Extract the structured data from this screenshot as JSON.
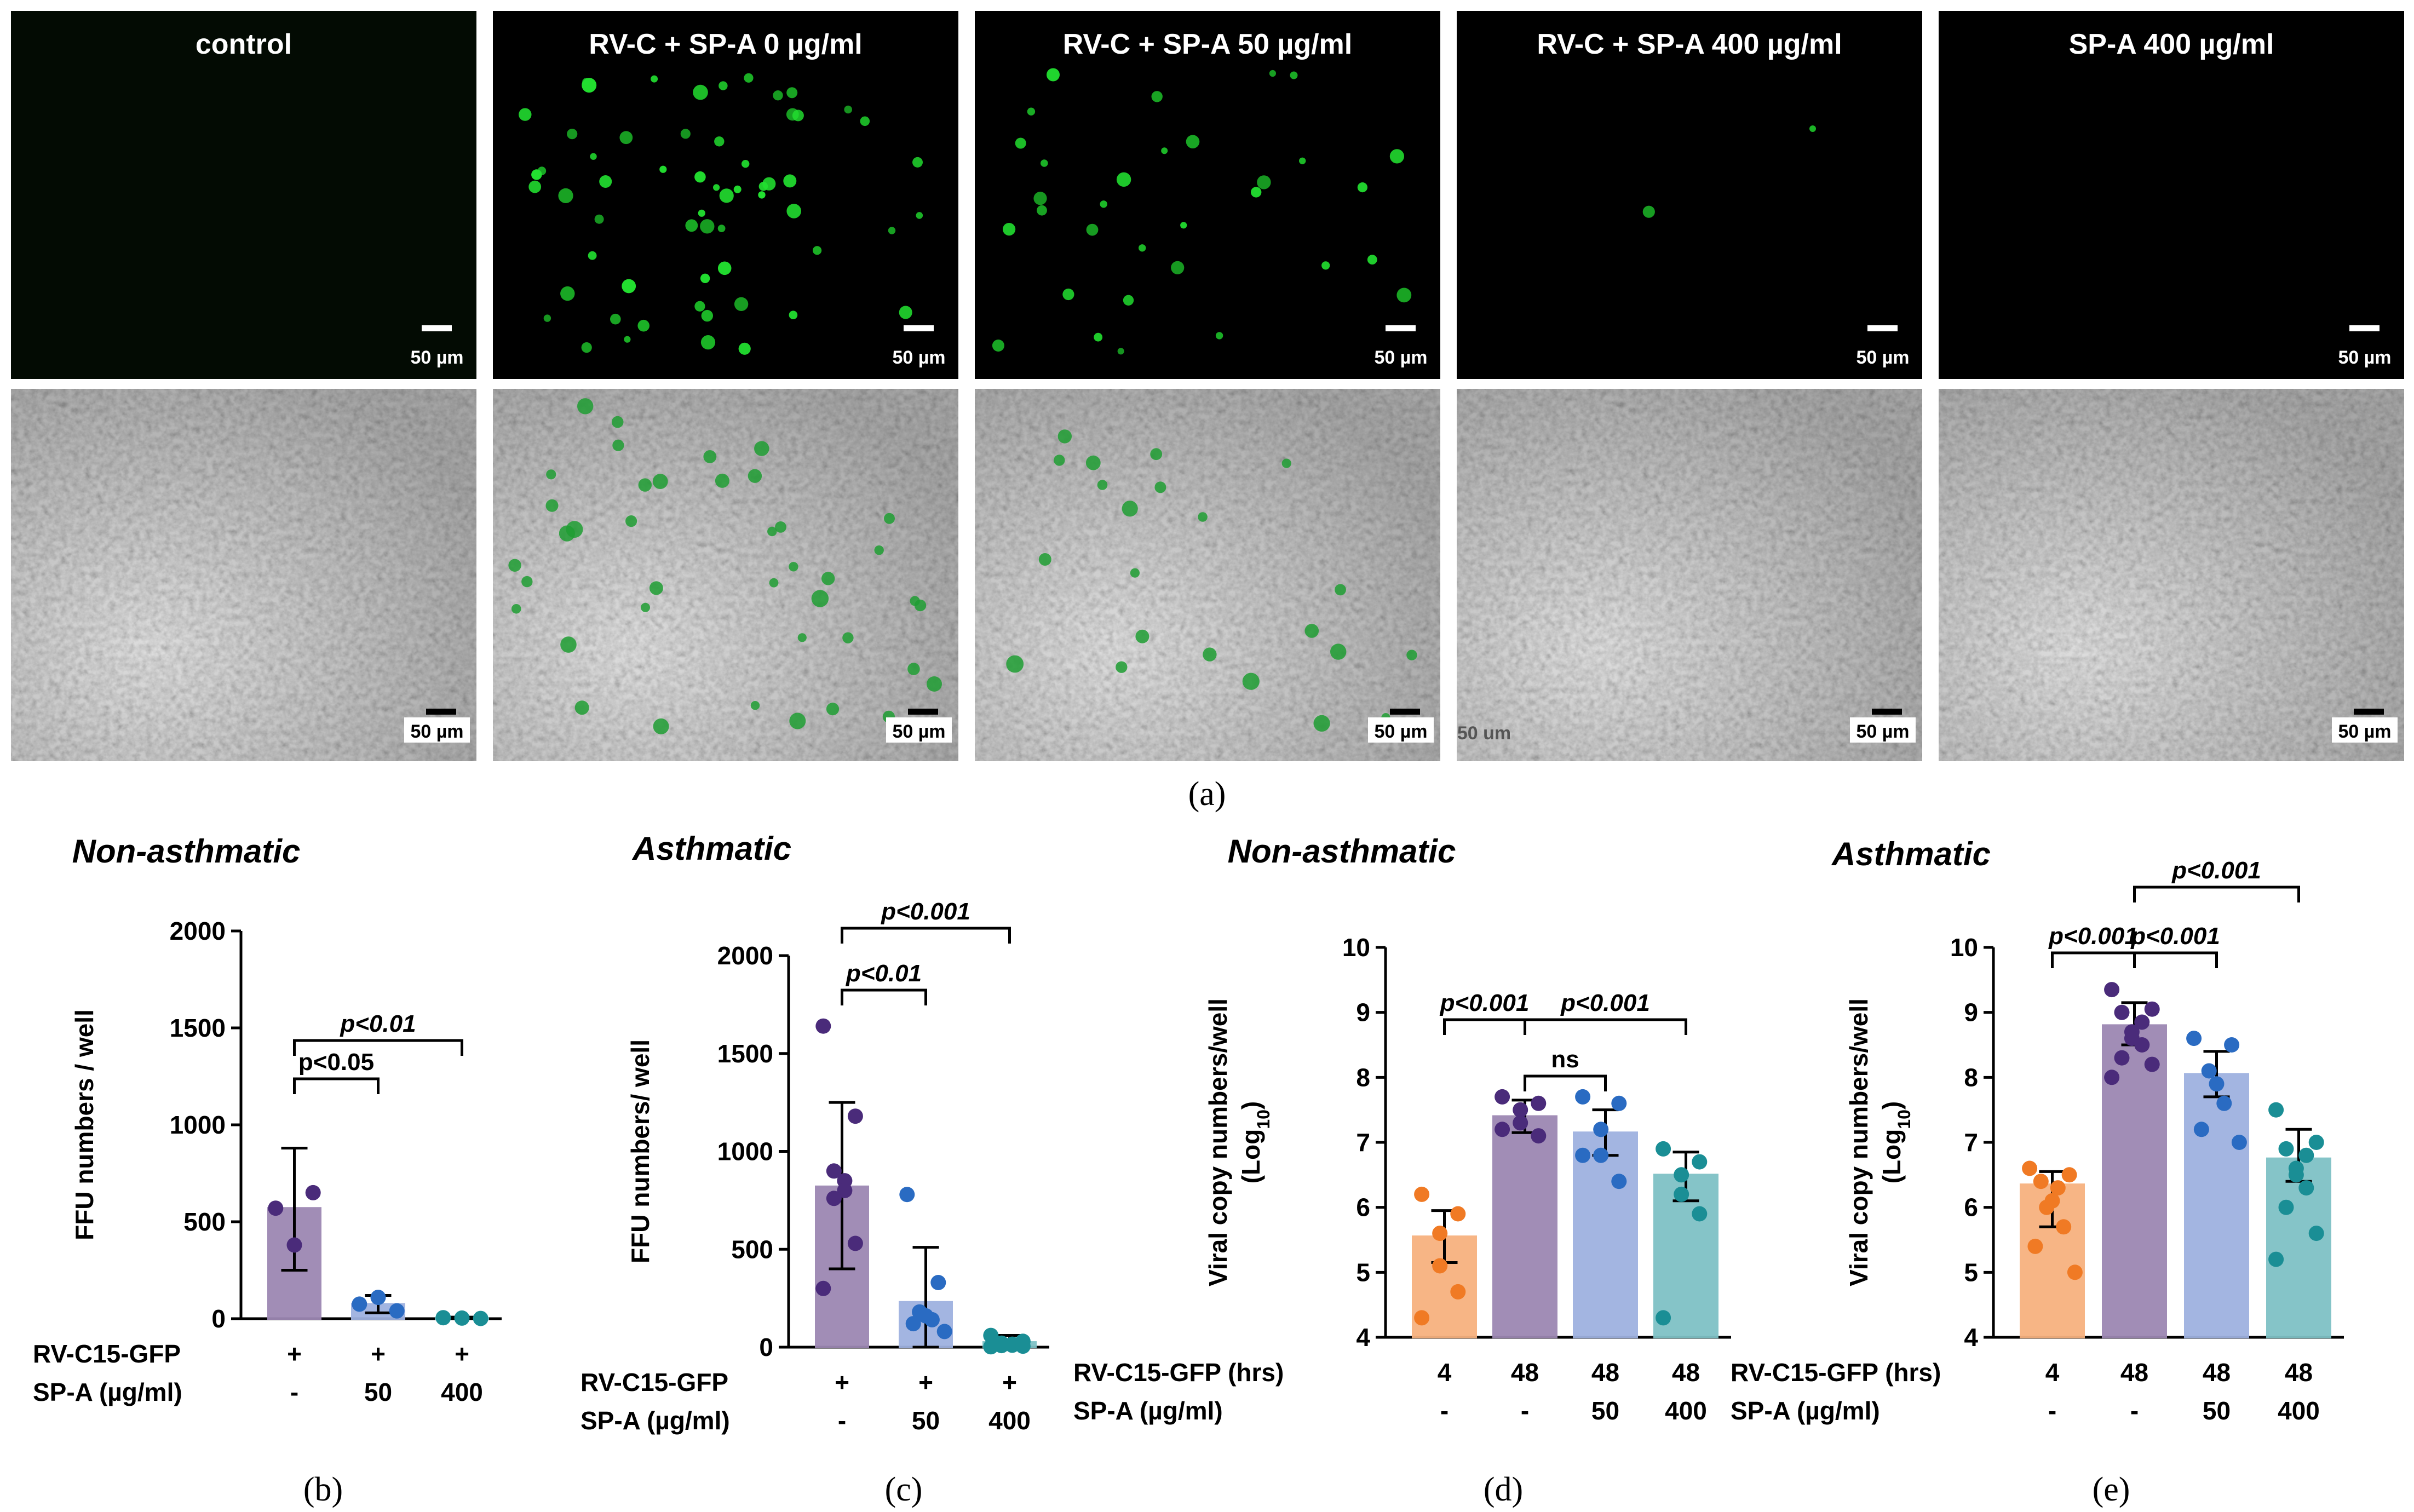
{
  "panel_labels": [
    "(a)",
    "(b)",
    "(c)",
    "(d)",
    "(e)"
  ],
  "micrographs": {
    "titles": [
      "control",
      "RV-C + SP-A 0 µg/ml",
      "RV-C + SP-A 50 µg/ml",
      "RV-C + SP-A 400 µg/ml",
      "SP-A 400 µg/ml"
    ],
    "scale_bar_label": "50 µm",
    "faint_scale_label": "50 um",
    "colors": {
      "fluorescence": "#22e030",
      "background": "#000000",
      "brightfield": "#b4b4b4"
    }
  },
  "chart_data": [
    {
      "type": "bar",
      "panel": "(b)",
      "title": "Non-asthmatic",
      "ylabel": "FFU numbers / well",
      "ylim": [
        0,
        2000
      ],
      "yticks": [
        "0",
        "500",
        "1000",
        "1500",
        "2000"
      ],
      "conditions": [
        {
          "label": "RV-C15-GFP",
          "values": [
            "+",
            "+",
            "+"
          ]
        },
        {
          "label": "SP-A (µg/ml)",
          "values": [
            "-",
            "50",
            "400"
          ]
        }
      ],
      "series": [
        {
          "group": 0,
          "mean": 570,
          "err": [
            250,
            880
          ],
          "points": [
            570,
            380,
            650
          ],
          "bar_color": "#9c87b3",
          "point_color": "#4a2b7a"
        },
        {
          "group": 1,
          "mean": 75,
          "err": [
            30,
            120
          ],
          "points": [
            75,
            110,
            40
          ],
          "bar_color": "#9fb2e0",
          "point_color": "#2a6bc2"
        },
        {
          "group": 2,
          "mean": 3,
          "err": [
            0,
            8
          ],
          "points": [
            5,
            3,
            1
          ],
          "bar_color": "#7fc1c6",
          "point_color": "#1a8e95"
        }
      ],
      "comparisons": [
        {
          "from": 0,
          "to": 1,
          "label": "p<0.05",
          "italic": false
        },
        {
          "from": 0,
          "to": 2,
          "label": "p<0.01",
          "italic": true
        }
      ]
    },
    {
      "type": "bar",
      "panel": "(c)",
      "title": "Asthmatic",
      "ylabel": "FFU numbers/ well",
      "ylim": [
        0,
        2000
      ],
      "yticks": [
        "0",
        "500",
        "1000",
        "1500",
        "2000"
      ],
      "conditions": [
        {
          "label": "RV-C15-GFP",
          "values": [
            "+",
            "+",
            "+"
          ]
        },
        {
          "label": "SP-A (µg/ml)",
          "values": [
            "-",
            "50",
            "400"
          ]
        }
      ],
      "series": [
        {
          "group": 0,
          "mean": 820,
          "err": [
            400,
            1250
          ],
          "points": [
            1640,
            1180,
            900,
            850,
            800,
            760,
            530,
            300
          ],
          "bar_color": "#9c87b3",
          "point_color": "#4a2b7a"
        },
        {
          "group": 1,
          "mean": 230,
          "err": [
            0,
            510
          ],
          "points": [
            780,
            330,
            180,
            160,
            140,
            120,
            80
          ],
          "bar_color": "#9fb2e0",
          "point_color": "#2a6bc2"
        },
        {
          "group": 2,
          "mean": 25,
          "err": [
            0,
            60
          ],
          "points": [
            60,
            30,
            20,
            15,
            10,
            8,
            5,
            2
          ],
          "bar_color": "#7fc1c6",
          "point_color": "#1a8e95"
        }
      ],
      "comparisons": [
        {
          "from": 0,
          "to": 1,
          "label": "p<0.01",
          "italic": true
        },
        {
          "from": 0,
          "to": 2,
          "label": "p<0.001",
          "italic": true
        }
      ]
    },
    {
      "type": "bar",
      "panel": "(d)",
      "title": "Non-asthmatic",
      "ylabel": "Viral copy numbers/well",
      "ylabel2": "(Log",
      "ylabel2_sub": "10",
      "ylabel2_end": ")",
      "ylim": [
        4,
        10
      ],
      "yticks": [
        "4",
        "5",
        "6",
        "7",
        "8",
        "9",
        "10"
      ],
      "conditions": [
        {
          "label": "RV-C15-GFP (hrs)",
          "values": [
            "4",
            "48",
            "48",
            "48"
          ]
        },
        {
          "label": "SP-A (µg/ml)",
          "values": [
            "-",
            "-",
            "50",
            "400"
          ]
        }
      ],
      "series": [
        {
          "group": 0,
          "mean": 5.55,
          "err": [
            5.15,
            5.95
          ],
          "points": [
            6.2,
            5.9,
            5.6,
            5.1,
            4.7,
            4.3
          ],
          "bar_color": "#f7b27f",
          "point_color": "#f07a24"
        },
        {
          "group": 1,
          "mean": 7.4,
          "err": [
            7.15,
            7.65
          ],
          "points": [
            7.7,
            7.6,
            7.5,
            7.3,
            7.1,
            7.2
          ],
          "bar_color": "#9c87b3",
          "point_color": "#4a2b7a"
        },
        {
          "group": 2,
          "mean": 7.15,
          "err": [
            6.8,
            7.5
          ],
          "points": [
            7.7,
            7.6,
            7.2,
            6.8,
            6.4,
            6.8
          ],
          "bar_color": "#9fb2e0",
          "point_color": "#2a6bc2"
        },
        {
          "group": 3,
          "mean": 6.5,
          "err": [
            6.1,
            6.85
          ],
          "points": [
            6.9,
            6.7,
            6.5,
            6.2,
            5.9,
            4.3
          ],
          "bar_color": "#7fc1c6",
          "point_color": "#1a8e95"
        }
      ],
      "comparisons": [
        {
          "from": 0,
          "to": 1,
          "label": "p<0.001",
          "italic": true
        },
        {
          "from": 1,
          "to": 2,
          "label": "ns",
          "italic": false
        },
        {
          "from": 1,
          "to": 3,
          "label": "p<0.001",
          "italic": true
        }
      ]
    },
    {
      "type": "bar",
      "panel": "(e)",
      "title": "Asthmatic",
      "ylabel": "Viral copy numbers/well",
      "ylabel2": "(Log",
      "ylabel2_sub": "10",
      "ylabel2_end": ")",
      "ylim": [
        4,
        10
      ],
      "yticks": [
        "4",
        "5",
        "6",
        "7",
        "8",
        "9",
        "10"
      ],
      "conditions": [
        {
          "label": "RV-C15-GFP (hrs)",
          "values": [
            "4",
            "48",
            "48",
            "48"
          ]
        },
        {
          "label": "SP-A (µg/ml)",
          "values": [
            "-",
            "-",
            "50",
            "400"
          ]
        }
      ],
      "series": [
        {
          "group": 0,
          "mean": 6.35,
          "err": [
            5.7,
            6.55
          ],
          "points": [
            6.6,
            6.5,
            6.4,
            6.3,
            6.1,
            6.0,
            5.7,
            5.4,
            5.0
          ],
          "bar_color": "#f7b27f",
          "point_color": "#f07a24"
        },
        {
          "group": 1,
          "mean": 8.8,
          "err": [
            8.5,
            9.15
          ],
          "points": [
            9.35,
            9.05,
            9.0,
            8.85,
            8.7,
            8.6,
            8.5,
            8.3,
            8.2,
            8.0
          ],
          "bar_color": "#9c87b3",
          "point_color": "#4a2b7a"
        },
        {
          "group": 2,
          "mean": 8.05,
          "err": [
            7.7,
            8.4
          ],
          "points": [
            8.6,
            8.5,
            8.1,
            7.9,
            7.6,
            7.2,
            7.0
          ],
          "bar_color": "#9fb2e0",
          "point_color": "#2a6bc2"
        },
        {
          "group": 3,
          "mean": 6.75,
          "err": [
            6.4,
            7.2
          ],
          "points": [
            7.5,
            7.0,
            6.9,
            6.8,
            6.6,
            6.5,
            6.3,
            6.0,
            5.6,
            5.2
          ],
          "bar_color": "#7fc1c6",
          "point_color": "#1a8e95"
        }
      ],
      "comparisons": [
        {
          "from": 0,
          "to": 1,
          "label": "p<0.001",
          "italic": true
        },
        {
          "from": 1,
          "to": 2,
          "label": "p<0.001",
          "italic": true
        },
        {
          "from": 1,
          "to": 3,
          "label": "p<0.001",
          "italic": true
        }
      ]
    }
  ]
}
